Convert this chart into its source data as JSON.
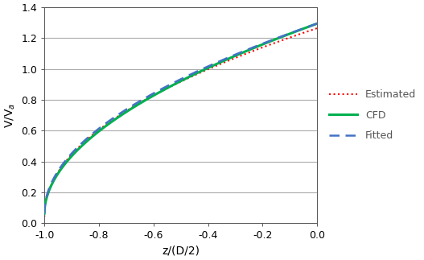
{
  "xlim": [
    -1.0,
    0.0
  ],
  "ylim": [
    0.0,
    1.4
  ],
  "xlabel": "z/(D/2)",
  "yticks": [
    0.0,
    0.2,
    0.4,
    0.6,
    0.8,
    1.0,
    1.2,
    1.4
  ],
  "xticks": [
    -1.0,
    -0.8,
    -0.6,
    -0.4,
    -0.2,
    0.0
  ],
  "cfd_color": "#00B050",
  "fitted_color": "#4472C4",
  "estimated_color": "#FF0000",
  "cfd_linewidth": 2.2,
  "fitted_linewidth": 1.8,
  "estimated_linewidth": 1.5,
  "grid_color": "#AAAAAA",
  "legend_labels": [
    "CFD",
    "Fitted",
    "Estimated"
  ],
  "cfd_vmax": 1.295,
  "cfd_vmin": 0.063,
  "cfd_exp": 0.52,
  "fitted_vmax": 1.295,
  "fitted_vmin": 0.063,
  "fitted_exp": 0.5,
  "estimated_vmax": 1.265,
  "estimated_vmin": 0.04,
  "estimated_exp": 0.48
}
